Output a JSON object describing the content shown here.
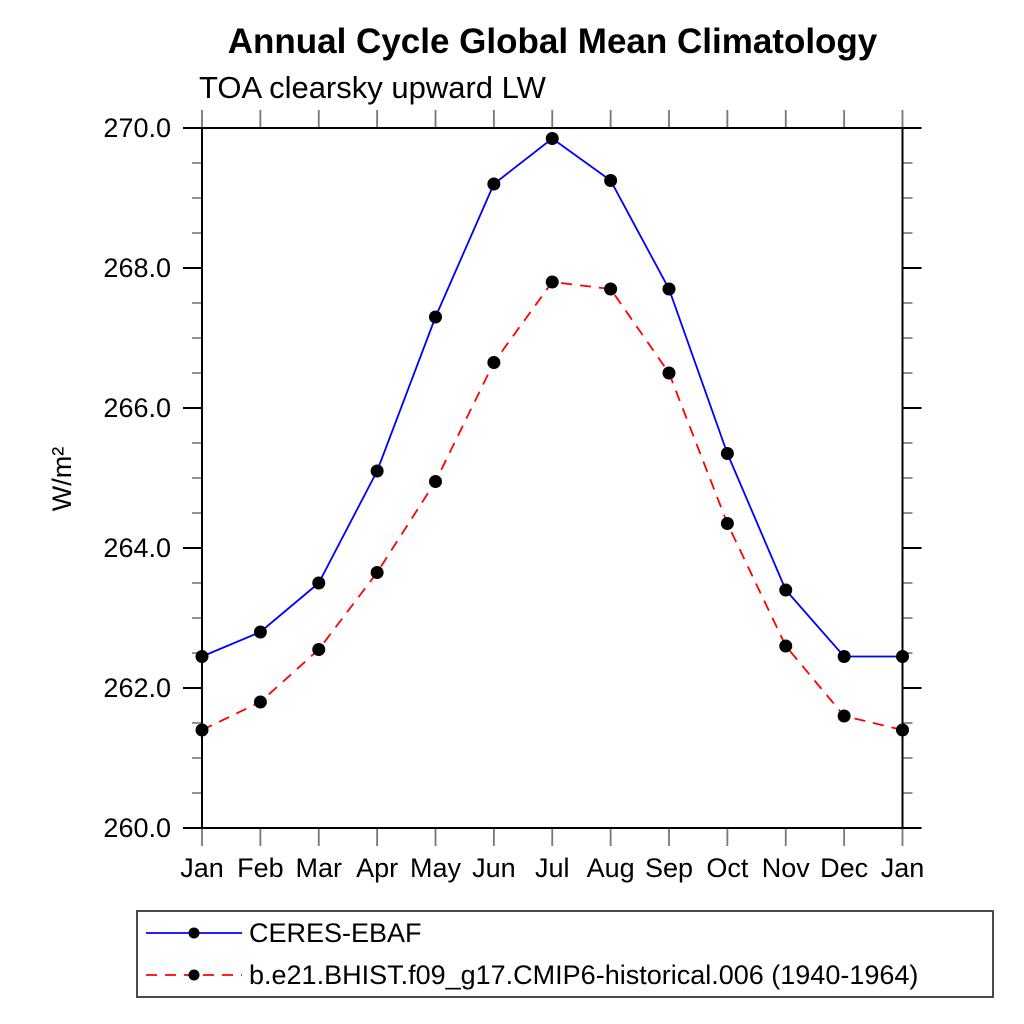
{
  "chart_data": {
    "type": "line",
    "title": "Annual Cycle Global Mean Climatology",
    "subtitle": "TOA clearsky upward LW",
    "ylabel": "W/m²",
    "categories": [
      "Jan",
      "Feb",
      "Mar",
      "Apr",
      "May",
      "Jun",
      "Jul",
      "Aug",
      "Sep",
      "Oct",
      "Nov",
      "Dec",
      "Jan"
    ],
    "series": [
      {
        "name": "CERES-EBAF",
        "color": "#0000ff",
        "line_style": "solid",
        "marker": "black-dot",
        "values": [
          262.45,
          262.8,
          263.5,
          265.1,
          267.3,
          269.2,
          269.85,
          269.25,
          267.7,
          265.35,
          263.4,
          262.45,
          262.45
        ]
      },
      {
        "name": "b.e21.BHIST.f09_g17.CMIP6-historical.006 (1940-1964)",
        "color": "#ff0000",
        "line_style": "dashed",
        "marker": "black-dot",
        "values": [
          261.4,
          261.8,
          262.55,
          263.65,
          264.95,
          266.65,
          267.8,
          267.7,
          266.5,
          264.35,
          262.6,
          261.6,
          261.4
        ]
      }
    ],
    "ylim": [
      260.0,
      270.0
    ],
    "ytick_major": 2.0,
    "ytick_minor": 0.5,
    "ytick_label_format": "one-decimal",
    "grid": false,
    "frame": "box-with-outward-ticks",
    "legend_position": "bottom-left"
  },
  "colors": {
    "axis": "#000000",
    "minor_tick": "#777777",
    "month_tick": "#777777",
    "marker": "#000000",
    "legend_border": "#4a4a4a"
  }
}
